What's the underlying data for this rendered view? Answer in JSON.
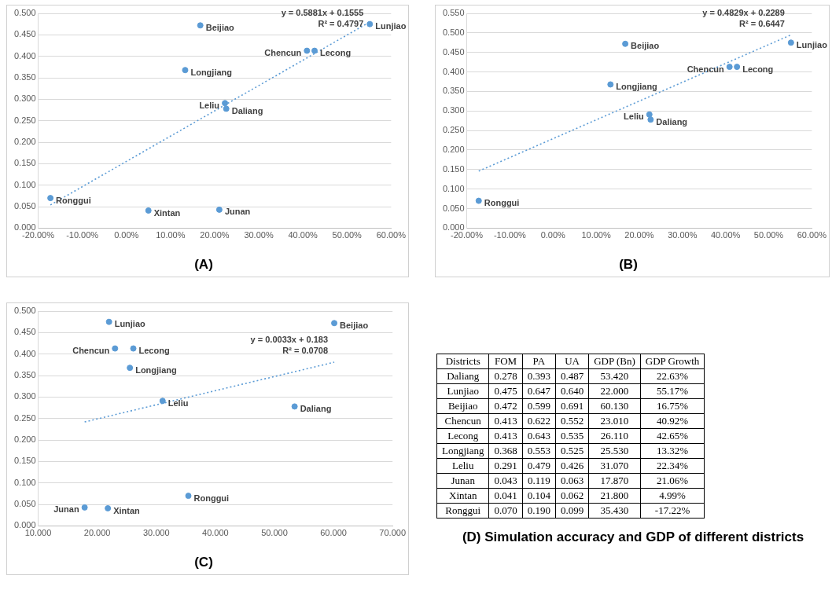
{
  "chart_data": [
    {
      "type": "scatter",
      "title": "(A)",
      "grid": "y",
      "marker": "circle",
      "legend": false,
      "xlim": [
        -20,
        60
      ],
      "xticks": [
        {
          "value": -20,
          "label": "-20.00%"
        },
        {
          "value": -10,
          "label": "-10.00%"
        },
        {
          "value": 0,
          "label": "0.00%"
        },
        {
          "value": 10,
          "label": "10.00%"
        },
        {
          "value": 20,
          "label": "20.00%"
        },
        {
          "value": 30,
          "label": "30.00%"
        },
        {
          "value": 40,
          "label": "40.00%"
        },
        {
          "value": 50,
          "label": "50.00%"
        },
        {
          "value": 60,
          "label": "60.00%"
        }
      ],
      "ylim": [
        0,
        0.5
      ],
      "yticks": [
        {
          "value": 0,
          "label": "0.000"
        },
        {
          "value": 0.05,
          "label": "0.050"
        },
        {
          "value": 0.1,
          "label": "0.100"
        },
        {
          "value": 0.15,
          "label": "0.150"
        },
        {
          "value": 0.2,
          "label": "0.200"
        },
        {
          "value": 0.25,
          "label": "0.250"
        },
        {
          "value": 0.3,
          "label": "0.300"
        },
        {
          "value": 0.35,
          "label": "0.350"
        },
        {
          "value": 0.4,
          "label": "0.400"
        },
        {
          "value": 0.45,
          "label": "0.450"
        },
        {
          "value": 0.5,
          "label": "0.500"
        }
      ],
      "series": [
        {
          "type": "scatter",
          "color": "#5b9bd5",
          "x": [
            22.63,
            55.17,
            16.75,
            40.92,
            42.65,
            13.32,
            22.34,
            21.06,
            4.99,
            -17.22
          ],
          "values": [
            0.278,
            0.475,
            0.472,
            0.413,
            0.413,
            0.368,
            0.291,
            0.043,
            0.041,
            0.07
          ]
        },
        {
          "type": "line",
          "color": "#5b9bd5",
          "line_style": "dotted",
          "marker": "none",
          "x": [
            -17.22,
            55.17
          ],
          "values": [
            0.054,
            0.48
          ]
        }
      ],
      "annotations": [
        "y = 0.5881x + 0.1555",
        "R² = 0.4797",
        {
          "text": "Daliang",
          "x": 22.63,
          "y": 0.278
        },
        {
          "text": "Lunjiao",
          "x": 55.17,
          "y": 0.475
        },
        {
          "text": "Beijiao",
          "x": 16.75,
          "y": 0.472
        },
        {
          "text": "Chencun",
          "x": 40.92,
          "y": 0.413
        },
        {
          "text": "Lecong",
          "x": 42.65,
          "y": 0.413
        },
        {
          "text": "Longjiang",
          "x": 13.32,
          "y": 0.368
        },
        {
          "text": "Leliu",
          "x": 22.34,
          "y": 0.291
        },
        {
          "text": "Junan",
          "x": 21.06,
          "y": 0.043
        },
        {
          "text": "Xintan",
          "x": 4.99,
          "y": 0.041
        },
        {
          "text": "Ronggui",
          "x": -17.22,
          "y": 0.07
        }
      ]
    },
    {
      "type": "scatter",
      "title": "(B)",
      "grid": "y",
      "marker": "circle",
      "legend": false,
      "xlim": [
        -20,
        60
      ],
      "xticks": [
        {
          "value": -20,
          "label": "-20.00%"
        },
        {
          "value": -10,
          "label": "-10.00%"
        },
        {
          "value": 0,
          "label": "0.00%"
        },
        {
          "value": 10,
          "label": "10.00%"
        },
        {
          "value": 20,
          "label": "20.00%"
        },
        {
          "value": 30,
          "label": "30.00%"
        },
        {
          "value": 40,
          "label": "40.00%"
        },
        {
          "value": 50,
          "label": "50.00%"
        },
        {
          "value": 60,
          "label": "60.00%"
        }
      ],
      "ylim": [
        0,
        0.55
      ],
      "yticks": [
        {
          "value": 0,
          "label": "0.000"
        },
        {
          "value": 0.05,
          "label": "0.050"
        },
        {
          "value": 0.1,
          "label": "0.100"
        },
        {
          "value": 0.15,
          "label": "0.150"
        },
        {
          "value": 0.2,
          "label": "0.200"
        },
        {
          "value": 0.25,
          "label": "0.250"
        },
        {
          "value": 0.3,
          "label": "0.300"
        },
        {
          "value": 0.35,
          "label": "0.350"
        },
        {
          "value": 0.4,
          "label": "0.400"
        },
        {
          "value": 0.45,
          "label": "0.450"
        },
        {
          "value": 0.5,
          "label": "0.500"
        },
        {
          "value": 0.55,
          "label": "0.550"
        }
      ],
      "series": [
        {
          "type": "scatter",
          "color": "#5b9bd5",
          "x": [
            22.63,
            55.17,
            16.75,
            40.92,
            42.65,
            13.32,
            22.34,
            -17.22
          ],
          "values": [
            0.278,
            0.475,
            0.472,
            0.413,
            0.413,
            0.368,
            0.291,
            0.07
          ]
        },
        {
          "type": "line",
          "color": "#5b9bd5",
          "line_style": "dotted",
          "marker": "none",
          "x": [
            -17.22,
            55.17
          ],
          "values": [
            0.146,
            0.495
          ]
        }
      ],
      "annotations": [
        "y = 0.4829x + 0.2289",
        "R² = 0.6447",
        {
          "text": "Daliang",
          "x": 22.63,
          "y": 0.278
        },
        {
          "text": "Lunjiao",
          "x": 55.17,
          "y": 0.475
        },
        {
          "text": "Beijiao",
          "x": 16.75,
          "y": 0.472
        },
        {
          "text": "Chencun",
          "x": 40.92,
          "y": 0.413
        },
        {
          "text": "Lecong",
          "x": 42.65,
          "y": 0.413
        },
        {
          "text": "Longjiang",
          "x": 13.32,
          "y": 0.368
        },
        {
          "text": "Leliu",
          "x": 22.34,
          "y": 0.291
        },
        {
          "text": "Ronggui",
          "x": -17.22,
          "y": 0.07
        }
      ]
    },
    {
      "type": "scatter",
      "title": "(C)",
      "grid": "y",
      "marker": "circle",
      "legend": false,
      "xlim": [
        10,
        70
      ],
      "xticks": [
        {
          "value": 10,
          "label": "10.000"
        },
        {
          "value": 20,
          "label": "20.000"
        },
        {
          "value": 30,
          "label": "30.000"
        },
        {
          "value": 40,
          "label": "40.000"
        },
        {
          "value": 50,
          "label": "50.000"
        },
        {
          "value": 60,
          "label": "60.000"
        },
        {
          "value": 70,
          "label": "70.000"
        }
      ],
      "ylim": [
        0,
        0.5
      ],
      "yticks": [
        {
          "value": 0,
          "label": "0.000"
        },
        {
          "value": 0.05,
          "label": "0.050"
        },
        {
          "value": 0.1,
          "label": "0.100"
        },
        {
          "value": 0.15,
          "label": "0.150"
        },
        {
          "value": 0.2,
          "label": "0.200"
        },
        {
          "value": 0.25,
          "label": "0.250"
        },
        {
          "value": 0.3,
          "label": "0.300"
        },
        {
          "value": 0.35,
          "label": "0.350"
        },
        {
          "value": 0.4,
          "label": "0.400"
        },
        {
          "value": 0.45,
          "label": "0.450"
        },
        {
          "value": 0.5,
          "label": "0.500"
        }
      ],
      "series": [
        {
          "type": "scatter",
          "color": "#5b9bd5",
          "x": [
            53.42,
            22.0,
            60.13,
            23.01,
            26.11,
            25.53,
            31.07,
            17.87,
            21.8,
            35.43
          ],
          "values": [
            0.278,
            0.475,
            0.472,
            0.413,
            0.413,
            0.368,
            0.291,
            0.043,
            0.041,
            0.07
          ]
        },
        {
          "type": "line",
          "color": "#5b9bd5",
          "line_style": "dotted",
          "marker": "none",
          "x": [
            17.87,
            60.13
          ],
          "values": [
            0.242,
            0.381
          ]
        }
      ],
      "annotations": [
        "y = 0.0033x + 0.183",
        "R² = 0.0708",
        {
          "text": "Daliang",
          "x": 53.42,
          "y": 0.278
        },
        {
          "text": "Lunjiao",
          "x": 22.0,
          "y": 0.475
        },
        {
          "text": "Beijiao",
          "x": 60.13,
          "y": 0.472
        },
        {
          "text": "Chencun",
          "x": 23.01,
          "y": 0.413
        },
        {
          "text": "Lecong",
          "x": 26.11,
          "y": 0.413
        },
        {
          "text": "Longjiang",
          "x": 25.53,
          "y": 0.368
        },
        {
          "text": "Leliu",
          "x": 31.07,
          "y": 0.291
        },
        {
          "text": "Junan",
          "x": 17.87,
          "y": 0.043
        },
        {
          "text": "Xintan",
          "x": 21.8,
          "y": 0.041
        },
        {
          "text": "Ronggui",
          "x": 35.43,
          "y": 0.07
        }
      ]
    },
    {
      "type": "other",
      "title": "(D) Simulation accuracy and GDP of different districts",
      "ylabel": "Districts",
      "categories": [
        "Daliang",
        "Lunjiao",
        "Beijiao",
        "Chencun",
        "Lecong",
        "Longjiang",
        "Leliu",
        "Junan",
        "Xintan",
        "Ronggui"
      ],
      "series": [
        {
          "name": "FOM",
          "values": [
            0.278,
            0.475,
            0.472,
            0.413,
            0.413,
            0.368,
            0.291,
            0.043,
            0.041,
            0.07
          ],
          "value_labels": [
            "0.278",
            "0.475",
            "0.472",
            "0.413",
            "0.413",
            "0.368",
            "0.291",
            "0.043",
            "0.041",
            "0.070"
          ]
        },
        {
          "name": "PA",
          "values": [
            0.393,
            0.647,
            0.599,
            0.622,
            0.643,
            0.553,
            0.479,
            0.119,
            0.104,
            0.19
          ],
          "value_labels": [
            "0.393",
            "0.647",
            "0.599",
            "0.622",
            "0.643",
            "0.553",
            "0.479",
            "0.119",
            "0.104",
            "0.190"
          ]
        },
        {
          "name": "UA",
          "values": [
            0.487,
            0.64,
            0.691,
            0.552,
            0.535,
            0.525,
            0.426,
            0.063,
            0.062,
            0.099
          ],
          "value_labels": [
            "0.487",
            "0.640",
            "0.691",
            "0.552",
            "0.535",
            "0.525",
            "0.426",
            "0.063",
            "0.062",
            "0.099"
          ]
        },
        {
          "name": "GDP (Bn)",
          "values": [
            53.42,
            22.0,
            60.13,
            23.01,
            26.11,
            25.53,
            31.07,
            17.87,
            21.8,
            35.43
          ],
          "value_labels": [
            "53.420",
            "22.000",
            "60.130",
            "23.010",
            "26.110",
            "25.530",
            "31.070",
            "17.870",
            "21.800",
            "35.430"
          ]
        },
        {
          "name": "GDP Growth",
          "values": [
            22.63,
            55.17,
            16.75,
            40.92,
            42.65,
            13.32,
            22.34,
            21.06,
            4.99,
            -17.22
          ],
          "value_labels": [
            "22.63%",
            "55.17%",
            "16.75%",
            "40.92%",
            "42.65%",
            "13.32%",
            "22.34%",
            "21.06%",
            "4.99%",
            "-17.22%"
          ]
        }
      ]
    }
  ]
}
